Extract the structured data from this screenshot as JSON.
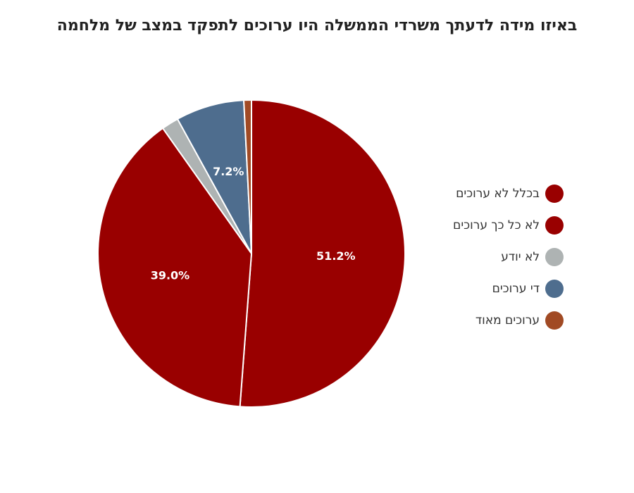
{
  "chart_data": {
    "type": "pie",
    "title": "באיזו מידה לדעתך משרדי הממשלה היו ערוכים לתפקד במצב של מלחמה",
    "legend_position": "right",
    "slices": [
      {
        "name": "בכלל לא ערוכים",
        "value": 51.2,
        "label": "51.2%",
        "color": "#990000"
      },
      {
        "name": "לא כל כך ערוכים",
        "value": 39.0,
        "label": "39.0%",
        "color": "#990000"
      },
      {
        "name": "לא יודע",
        "value": 1.8,
        "label": "",
        "color": "#aeb3b3"
      },
      {
        "name": "די ערוכים",
        "value": 7.2,
        "label": "7.2%",
        "color": "#4e6d8e"
      },
      {
        "name": "ערוכים מאוד",
        "value": 0.8,
        "label": "",
        "color": "#a14a24"
      }
    ]
  }
}
